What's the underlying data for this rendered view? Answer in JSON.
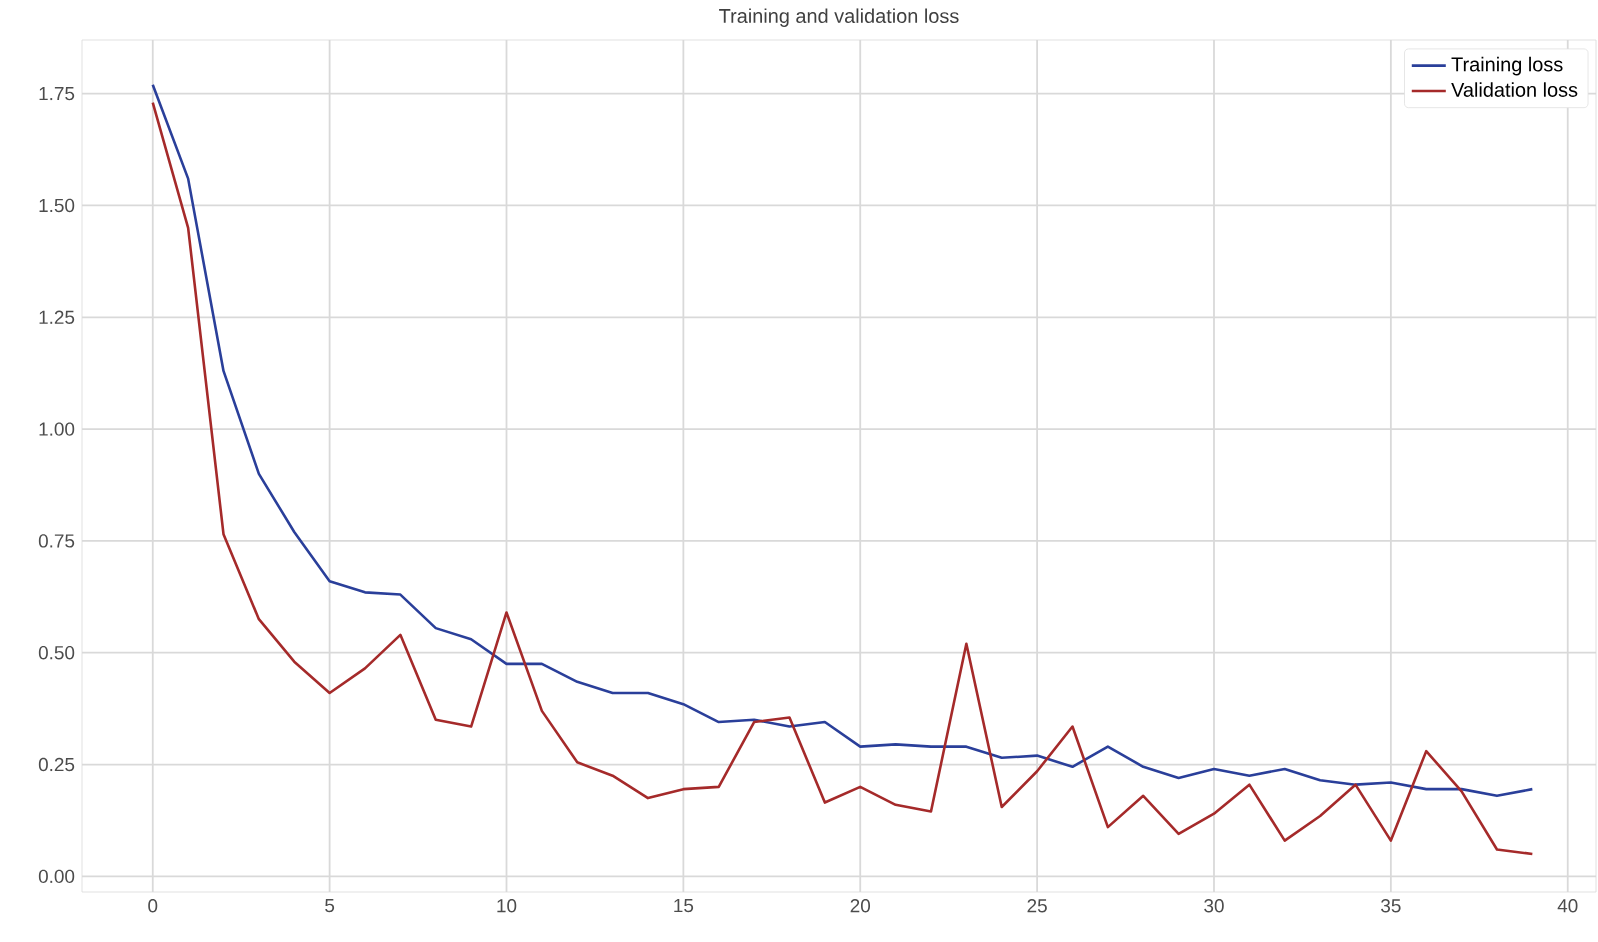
{
  "chart_data": {
    "type": "line",
    "title": "Training and validation loss",
    "x": [
      0,
      1,
      2,
      3,
      4,
      5,
      6,
      7,
      8,
      9,
      10,
      11,
      12,
      13,
      14,
      15,
      16,
      17,
      18,
      19,
      20,
      21,
      22,
      23,
      24,
      25,
      26,
      27,
      28,
      29,
      30,
      31,
      32,
      33,
      34,
      35,
      36,
      37,
      38,
      39
    ],
    "series": [
      {
        "name": "Training loss",
        "color": "#2a3f9a",
        "values": [
          1.77,
          1.56,
          1.13,
          0.9,
          0.77,
          0.66,
          0.635,
          0.63,
          0.555,
          0.53,
          0.475,
          0.475,
          0.435,
          0.41,
          0.41,
          0.385,
          0.345,
          0.35,
          0.335,
          0.345,
          0.29,
          0.295,
          0.29,
          0.29,
          0.265,
          0.27,
          0.245,
          0.29,
          0.245,
          0.22,
          0.24,
          0.225,
          0.24,
          0.215,
          0.205,
          0.21,
          0.195,
          0.195,
          0.18,
          0.195
        ]
      },
      {
        "name": "Validation loss",
        "color": "#a52a2a",
        "values": [
          1.73,
          1.45,
          0.765,
          0.575,
          0.48,
          0.41,
          0.465,
          0.54,
          0.35,
          0.335,
          0.59,
          0.37,
          0.255,
          0.225,
          0.175,
          0.195,
          0.2,
          0.345,
          0.355,
          0.165,
          0.2,
          0.16,
          0.145,
          0.52,
          0.155,
          0.235,
          0.335,
          0.11,
          0.18,
          0.095,
          0.14,
          0.205,
          0.08,
          0.135,
          0.205,
          0.08,
          0.28,
          0.19,
          0.06,
          0.05
        ]
      }
    ],
    "xlim": [
      -2,
      40.8
    ],
    "ylim": [
      -0.035,
      1.87
    ],
    "xticks": [
      0,
      5,
      10,
      15,
      20,
      25,
      30,
      35,
      40
    ],
    "yticks": [
      {
        "value": 0,
        "label": "0.00"
      },
      {
        "value": 0.25,
        "label": "0.25"
      },
      {
        "value": 0.5,
        "label": "0.50"
      },
      {
        "value": 0.75,
        "label": "0.75"
      },
      {
        "value": 1.0,
        "label": "1.00"
      },
      {
        "value": 1.25,
        "label": "1.25"
      },
      {
        "value": 1.5,
        "label": "1.50"
      },
      {
        "value": 1.75,
        "label": "1.75"
      }
    ],
    "grid": true,
    "legend": "top right"
  }
}
